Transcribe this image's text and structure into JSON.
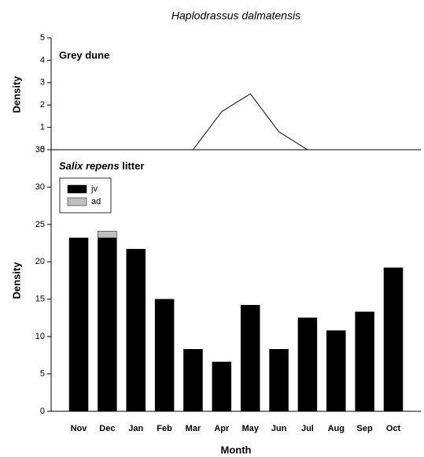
{
  "chart_data": [
    {
      "type": "line",
      "title": "Haplodrassus dalmatensis",
      "panel_label": "Grey dune",
      "ylabel": "Density",
      "values": [
        0,
        0,
        0,
        0,
        0,
        1.7,
        2.5,
        0.8,
        0,
        0,
        0,
        0
      ],
      "color": "#000000",
      "ylim": [
        0,
        5
      ],
      "yticks": [
        0,
        1,
        2,
        3,
        4,
        5
      ]
    },
    {
      "type": "bar",
      "stacked": true,
      "panel_label_italic": "Salix repens",
      "panel_label": "litter",
      "xlabel": "Month",
      "ylabel": "Density",
      "categories": [
        "Nov",
        "Dec",
        "Jan",
        "Feb",
        "Mar",
        "Apr",
        "May",
        "Jun",
        "Jul",
        "Aug",
        "Sep",
        "Oct"
      ],
      "series": [
        {
          "name": "jv",
          "color": "#000000",
          "values": [
            23.2,
            23.2,
            21.7,
            15.0,
            8.3,
            6.6,
            14.2,
            8.3,
            12.5,
            10.8,
            13.3,
            19.2
          ]
        },
        {
          "name": "ad",
          "color": "#c0c0c0",
          "values": [
            0,
            0.9,
            0,
            0,
            0,
            0,
            0,
            0,
            0,
            0,
            0,
            0
          ]
        }
      ],
      "ylim": [
        0,
        35
      ],
      "yticks": [
        0,
        5,
        10,
        15,
        20,
        25,
        30,
        35
      ],
      "legend": "upper left"
    }
  ]
}
